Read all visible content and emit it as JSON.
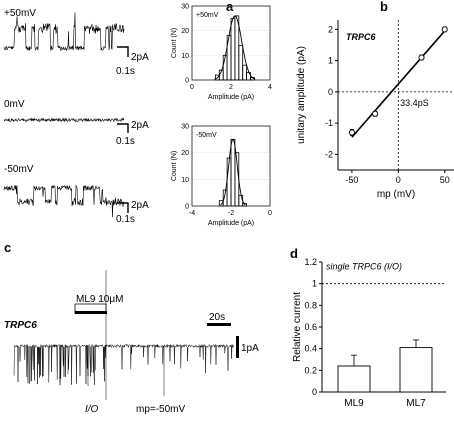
{
  "panel_letters": {
    "a": "a",
    "b": "b",
    "c": "c",
    "d": "d"
  },
  "traces": [
    {
      "voltage": "+50mV",
      "scale_current": "2pA",
      "scale_time": "0.1s"
    },
    {
      "voltage": "0mV",
      "scale_current": "2pA",
      "scale_time": "0.1s"
    },
    {
      "voltage": "-50mV",
      "scale_current": "2pA",
      "scale_time": "0.1s"
    }
  ],
  "long_trace": {
    "channel": "TRPC6",
    "drug_label": "ML9 10μM",
    "scale_time": "20s",
    "scale_current": "1pA",
    "io_label": "I/O",
    "mp_label": "mp=-50mV"
  },
  "chart_data": [
    {
      "type": "bar",
      "panel": "a-top",
      "note": "amplitude histogram with gaussian fit",
      "inner_label": "+50mV",
      "xlabel": "Amplitude (pA)",
      "ylabel": "Count (N)",
      "xlim": [
        0,
        4
      ],
      "ylim": [
        0,
        30
      ],
      "xticks": [
        "0",
        "2",
        "4"
      ],
      "yticks": [
        "0",
        "10",
        "20",
        "30"
      ],
      "bin_width": 0.2,
      "x": [
        1.3,
        1.5,
        1.7,
        1.9,
        2.1,
        2.3,
        2.5,
        2.7,
        2.9,
        3.1
      ],
      "values": [
        2,
        4,
        10,
        18,
        25,
        26,
        14,
        6,
        3,
        1
      ],
      "fit_mean": 2.2,
      "fit_sd": 0.35,
      "fit_peak": 26
    },
    {
      "type": "bar",
      "panel": "a-bottom",
      "note": "amplitude histogram with gaussian fit",
      "inner_label": "-50mV",
      "xlabel": "Amplitude (pA)",
      "ylabel": "Count (N)",
      "xlim": [
        -4,
        0
      ],
      "ylim": [
        0,
        30
      ],
      "xticks": [
        "-4",
        "-2",
        "0"
      ],
      "yticks": [
        "0",
        "10",
        "20",
        "30"
      ],
      "bin_width": 0.2,
      "x": [
        -2.5,
        -2.3,
        -2.1,
        -1.9,
        -1.7,
        -1.5,
        -1.3
      ],
      "values": [
        2,
        6,
        18,
        25,
        20,
        4,
        1
      ],
      "fit_mean": -1.9,
      "fit_sd": 0.22,
      "fit_peak": 25
    },
    {
      "type": "scatter",
      "panel": "b",
      "inner_label": "TRPC6",
      "xlabel": "mp (mV)",
      "ylabel": "unitary amplitude (pA)",
      "xlim": [
        -65,
        60
      ],
      "ylim": [
        -2.5,
        2.3
      ],
      "xticks": [
        -50,
        0,
        50
      ],
      "yticks": [
        -2,
        -1,
        0,
        1,
        2
      ],
      "x": [
        -50,
        -25,
        25,
        50
      ],
      "y": [
        -1.3,
        -0.7,
        1.1,
        2.0
      ],
      "errors": [
        0.1,
        0.08,
        0.08,
        0.08
      ],
      "fit": {
        "slope_label": "33.4pS",
        "x0": -50,
        "y0": -1.45,
        "x1": 50,
        "y1": 1.95
      }
    },
    {
      "type": "bar",
      "panel": "d",
      "title": "single TRPC6 (I/O)",
      "ylabel": "Relative current",
      "categories": [
        "ML9",
        "ML7"
      ],
      "values": [
        0.24,
        0.41
      ],
      "errors": [
        0.1,
        0.07
      ],
      "reference_line": 1,
      "ylim": [
        0,
        1.2
      ],
      "yticks": [
        "0",
        "0.2",
        "0.4",
        "0.6",
        "0.8",
        "1",
        "1.2"
      ]
    }
  ]
}
